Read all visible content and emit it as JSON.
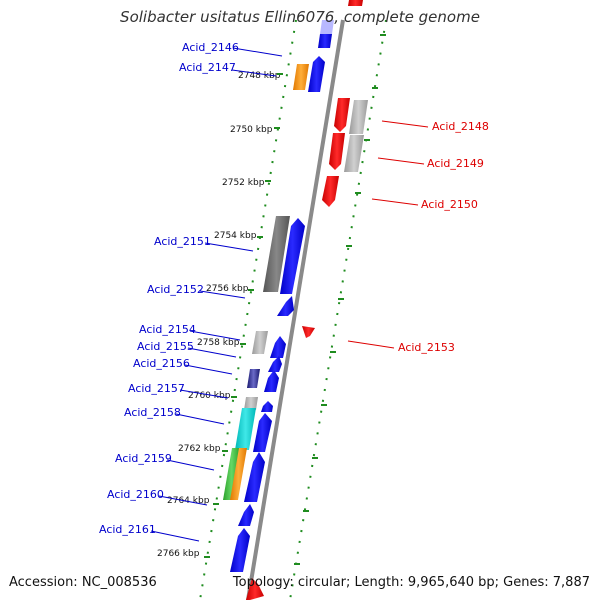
{
  "title": "Solibacter usitatus Ellin6076, complete genome",
  "accession": "Accession: NC_008536",
  "topology": "Topology: circular; Length: 9,965,640 bp; Genes: 7,887",
  "colors": {
    "forward_label": "#0000cc",
    "reverse_label": "#dd0000",
    "tick": "#1f8c1f",
    "backbone": "#888888"
  },
  "scale_labels": [
    "2748 kbp",
    "2750 kbp",
    "2752 kbp",
    "2754 kbp",
    "2756 kbp",
    "2758 kbp",
    "2760 kbp",
    "2762 kbp",
    "2764 kbp",
    "2766 kbp"
  ],
  "forward_genes": [
    "Acid_2146",
    "Acid_2147",
    "Acid_2151",
    "Acid_2152",
    "Acid_2154",
    "Acid_2155",
    "Acid_2156",
    "Acid_2157",
    "Acid_2158",
    "Acid_2159",
    "Acid_2160",
    "Acid_2161"
  ],
  "reverse_genes": [
    "Acid_2148",
    "Acid_2149",
    "Acid_2150",
    "Acid_2153"
  ]
}
